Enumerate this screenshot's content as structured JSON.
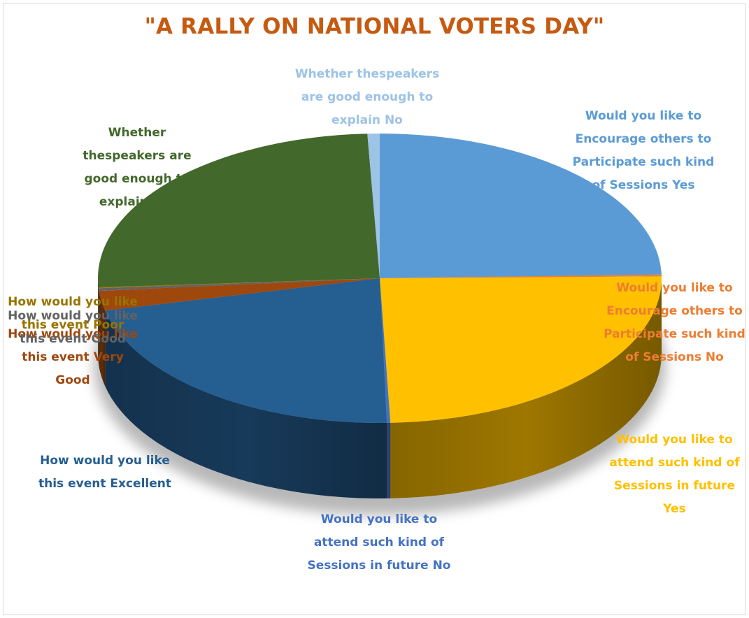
{
  "chart_data": {
    "type": "pie",
    "title": "\"A RALLY ON NATIONAL VOTERS DAY\"",
    "slices": [
      {
        "label": "Would you like to Encourage others to Participate such kind of Sessions  Yes",
        "value": 24.6,
        "color": "#5b9bd5"
      },
      {
        "label": "Would you like to Encourage others to Participate such kind of Sessions  No",
        "value": 0.2,
        "color": "#ed7d31"
      },
      {
        "label": "Would you like to attend such kind of Sessions in future Yes",
        "value": 24.6,
        "color": "#ffc000"
      },
      {
        "label": "Would you like to attend such kind of Sessions in future No",
        "value": 0.2,
        "color": "#4472c4"
      },
      {
        "label": "How would you like this event Excellent",
        "value": 21.8,
        "color": "#255e91"
      },
      {
        "label": "How would you like this event Very Good",
        "value": 2.2,
        "color": "#9e480e"
      },
      {
        "label": "How would you like this event Good",
        "value": 0.3,
        "color": "#636363"
      },
      {
        "label": "How would you like this event Poor",
        "value": 0.1,
        "color": "#997300"
      },
      {
        "label": "Whether thespeakers are good enough to explain  Yes",
        "value": 25.3,
        "color": "#43682b"
      },
      {
        "label": "Whether thespeakers are good enough to explain  No",
        "value": 0.7,
        "color": "#9dc3e6"
      }
    ],
    "legend": "none",
    "data_labels": "outside"
  }
}
